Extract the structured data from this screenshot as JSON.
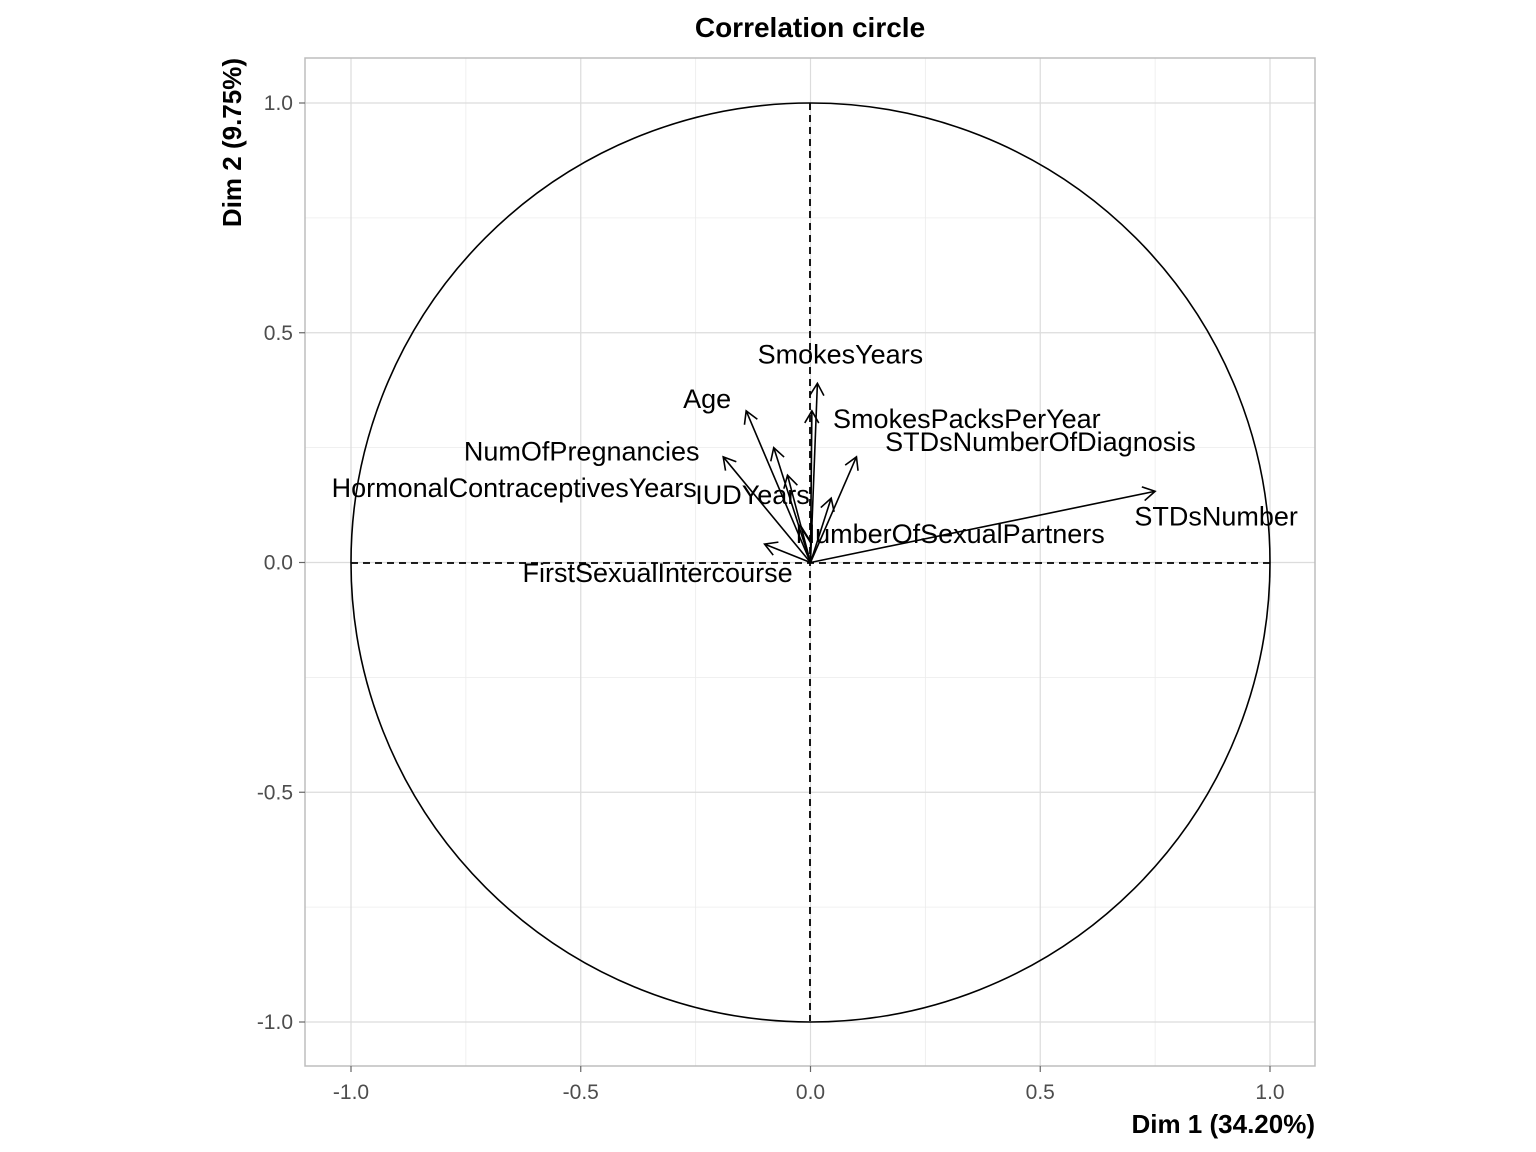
{
  "chart_data": {
    "type": "scatter",
    "subtype": "pca-correlation-circle",
    "title": "Correlation circle",
    "xlabel": "Dim 1 (34.20%)",
    "ylabel": "Dim 2 (9.75%)",
    "xlim": [
      -1.0,
      1.0
    ],
    "ylim": [
      -1.0,
      1.0
    ],
    "x_ticks": [
      -1.0,
      -0.5,
      0.0,
      0.5,
      1.0
    ],
    "y_ticks": [
      -1.0,
      -0.5,
      0.0,
      0.5,
      1.0
    ],
    "x_tick_labels": [
      "-1.0",
      "-0.5",
      "0.0",
      "0.5",
      "1.0"
    ],
    "y_tick_labels": [
      "-1.0",
      "-0.5",
      "0.0",
      "0.5",
      "1.0"
    ],
    "grid": true,
    "vectors": [
      {
        "name": "SmokesYears",
        "x": 0.015,
        "y": 0.39
      },
      {
        "name": "SmokesPacksPerYear",
        "x": 0.003,
        "y": 0.33
      },
      {
        "name": "Age",
        "x": -0.14,
        "y": 0.33
      },
      {
        "name": "NumOfPregnancies",
        "x": -0.08,
        "y": 0.25
      },
      {
        "name": "HormonalContraceptivesYears",
        "x": -0.19,
        "y": 0.23
      },
      {
        "name": "IUDYears",
        "x": -0.05,
        "y": 0.19
      },
      {
        "name": "STDsNumberOfDiagnosis",
        "x": 0.1,
        "y": 0.23
      },
      {
        "name": "NumberOfSexualPartners",
        "x": 0.045,
        "y": 0.14
      },
      {
        "name": "STDsNumber",
        "x": 0.75,
        "y": 0.155
      },
      {
        "name": "FirstSexualIntercourse",
        "x": -0.1,
        "y": 0.04
      }
    ]
  }
}
